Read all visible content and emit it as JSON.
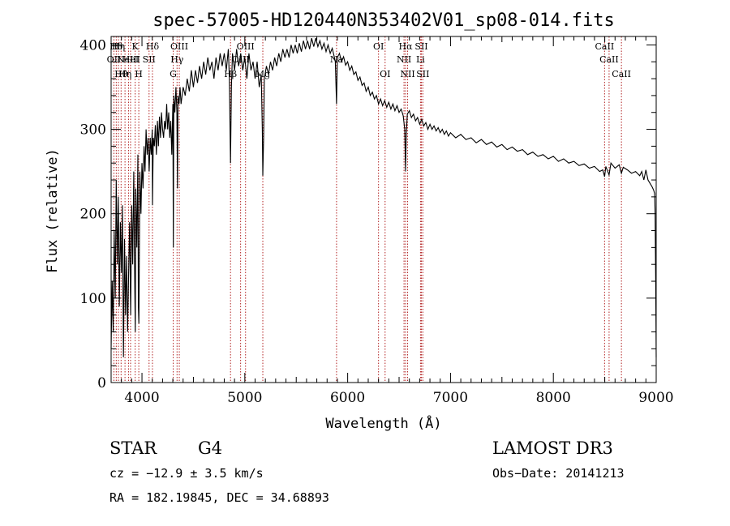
{
  "chart_data": {
    "type": "line",
    "title": "spec-57005-HD120440N353402V01_sp08-014.fits",
    "xlabel": "Wavelength (Å)",
    "ylabel": "Flux (relative)",
    "xlim": [
      3700,
      9000
    ],
    "ylim": [
      0,
      410
    ],
    "x_ticks": [
      {
        "value": 4000,
        "label": "4000"
      },
      {
        "value": 5000,
        "label": "5000"
      },
      {
        "value": 6000,
        "label": "6000"
      },
      {
        "value": 7000,
        "label": "7000"
      },
      {
        "value": 8000,
        "label": "8000"
      },
      {
        "value": 9000,
        "label": "9000"
      }
    ],
    "y_ticks": [
      {
        "value": 0,
        "label": "0"
      },
      {
        "value": 100,
        "label": "100"
      },
      {
        "value": 200,
        "label": "200"
      },
      {
        "value": 300,
        "label": "300"
      },
      {
        "value": 400,
        "label": "400"
      }
    ],
    "line_color": "#000000",
    "marker_color": "#b22222",
    "spectral_lines": [
      {
        "wavelength": 3727,
        "label": "OII",
        "tier": 2
      },
      {
        "wavelength": 3750,
        "label": "Hθ",
        "tier": 1
      },
      {
        "wavelength": 3771,
        "label": "Hη",
        "tier": 1
      },
      {
        "wavelength": 3797,
        "label": "Hθ",
        "tier": 3
      },
      {
        "wavelength": 3835,
        "label": "Hη",
        "tier": 3
      },
      {
        "wavelength": 3869,
        "label": "NeIII",
        "tier": 2
      },
      {
        "wavelength": 3889,
        "label": "HeI",
        "tier": 2
      },
      {
        "wavelength": 3934,
        "label": "K",
        "tier": 1
      },
      {
        "wavelength": 3969,
        "label": "H",
        "tier": 3
      },
      {
        "wavelength": 4069,
        "label": "SII",
        "tier": 2
      },
      {
        "wavelength": 4102,
        "label": "Hδ",
        "tier": 1
      },
      {
        "wavelength": 4304,
        "label": "G",
        "tier": 3
      },
      {
        "wavelength": 4341,
        "label": "Hγ",
        "tier": 2
      },
      {
        "wavelength": 4363,
        "label": "OIII",
        "tier": 1
      },
      {
        "wavelength": 4861,
        "label": "Hβ",
        "tier": 3
      },
      {
        "wavelength": 4959,
        "label": "OIII",
        "tier": 2
      },
      {
        "wavelength": 5007,
        "label": "OIII",
        "tier": 1
      },
      {
        "wavelength": 5175,
        "label": "Mg",
        "tier": 3
      },
      {
        "wavelength": 5892,
        "label": "Na",
        "tier": 2
      },
      {
        "wavelength": 6300,
        "label": "OI",
        "tier": 1
      },
      {
        "wavelength": 6364,
        "label": "OI",
        "tier": 3
      },
      {
        "wavelength": 6548,
        "label": "NII",
        "tier": 2
      },
      {
        "wavelength": 6563,
        "label": "Hα",
        "tier": 1
      },
      {
        "wavelength": 6583,
        "label": "NII",
        "tier": 3
      },
      {
        "wavelength": 6708,
        "label": "Li",
        "tier": 2
      },
      {
        "wavelength": 6717,
        "label": "SII",
        "tier": 1
      },
      {
        "wavelength": 6731,
        "label": "SII",
        "tier": 3
      },
      {
        "wavelength": 8498,
        "label": "CaII",
        "tier": 1
      },
      {
        "wavelength": 8542,
        "label": "CaII",
        "tier": 2
      },
      {
        "wavelength": 8662,
        "label": "CaII",
        "tier": 3
      }
    ],
    "spectrum": [
      [
        3700,
        40
      ],
      [
        3710,
        120
      ],
      [
        3720,
        60
      ],
      [
        3730,
        180
      ],
      [
        3740,
        100
      ],
      [
        3750,
        240
      ],
      [
        3760,
        140
      ],
      [
        3770,
        220
      ],
      [
        3780,
        90
      ],
      [
        3790,
        190
      ],
      [
        3800,
        130
      ],
      [
        3810,
        210
      ],
      [
        3820,
        30
      ],
      [
        3830,
        170
      ],
      [
        3840,
        80
      ],
      [
        3850,
        150
      ],
      [
        3860,
        60
      ],
      [
        3870,
        130
      ],
      [
        3880,
        190
      ],
      [
        3890,
        80
      ],
      [
        3900,
        210
      ],
      [
        3910,
        140
      ],
      [
        3920,
        250
      ],
      [
        3930,
        110
      ],
      [
        3935,
        60
      ],
      [
        3940,
        230
      ],
      [
        3950,
        160
      ],
      [
        3960,
        270
      ],
      [
        3965,
        90
      ],
      [
        3970,
        70
      ],
      [
        3980,
        250
      ],
      [
        3990,
        200
      ],
      [
        4000,
        260
      ],
      [
        4010,
        230
      ],
      [
        4020,
        280
      ],
      [
        4030,
        250
      ],
      [
        4040,
        300
      ],
      [
        4050,
        270
      ],
      [
        4060,
        290
      ],
      [
        4070,
        250
      ],
      [
        4080,
        290
      ],
      [
        4090,
        270
      ],
      [
        4100,
        300
      ],
      [
        4102,
        210
      ],
      [
        4110,
        290
      ],
      [
        4120,
        280
      ],
      [
        4130,
        305
      ],
      [
        4140,
        270
      ],
      [
        4150,
        310
      ],
      [
        4160,
        280
      ],
      [
        4170,
        315
      ],
      [
        4180,
        290
      ],
      [
        4190,
        320
      ],
      [
        4200,
        300
      ],
      [
        4210,
        290
      ],
      [
        4220,
        310
      ],
      [
        4230,
        300
      ],
      [
        4240,
        330
      ],
      [
        4250,
        300
      ],
      [
        4260,
        320
      ],
      [
        4270,
        290
      ],
      [
        4280,
        310
      ],
      [
        4290,
        270
      ],
      [
        4300,
        330
      ],
      [
        4305,
        160
      ],
      [
        4310,
        340
      ],
      [
        4320,
        320
      ],
      [
        4330,
        350
      ],
      [
        4340,
        320
      ],
      [
        4345,
        230
      ],
      [
        4350,
        340
      ],
      [
        4360,
        330
      ],
      [
        4370,
        350
      ],
      [
        4380,
        330
      ],
      [
        4390,
        340
      ],
      [
        4400,
        350
      ],
      [
        4420,
        340
      ],
      [
        4440,
        360
      ],
      [
        4460,
        345
      ],
      [
        4480,
        370
      ],
      [
        4500,
        350
      ],
      [
        4520,
        370
      ],
      [
        4540,
        355
      ],
      [
        4560,
        375
      ],
      [
        4580,
        360
      ],
      [
        4600,
        380
      ],
      [
        4620,
        365
      ],
      [
        4640,
        385
      ],
      [
        4660,
        370
      ],
      [
        4680,
        380
      ],
      [
        4700,
        360
      ],
      [
        4720,
        385
      ],
      [
        4740,
        370
      ],
      [
        4760,
        390
      ],
      [
        4780,
        375
      ],
      [
        4800,
        390
      ],
      [
        4820,
        370
      ],
      [
        4840,
        395
      ],
      [
        4850,
        360
      ],
      [
        4861,
        260
      ],
      [
        4870,
        350
      ],
      [
        4880,
        390
      ],
      [
        4900,
        370
      ],
      [
        4920,
        395
      ],
      [
        4940,
        375
      ],
      [
        4960,
        390
      ],
      [
        4980,
        370
      ],
      [
        5000,
        385
      ],
      [
        5020,
        360
      ],
      [
        5040,
        390
      ],
      [
        5060,
        370
      ],
      [
        5080,
        380
      ],
      [
        5100,
        360
      ],
      [
        5120,
        380
      ],
      [
        5140,
        350
      ],
      [
        5160,
        365
      ],
      [
        5170,
        300
      ],
      [
        5175,
        245
      ],
      [
        5183,
        290
      ],
      [
        5190,
        360
      ],
      [
        5210,
        375
      ],
      [
        5230,
        365
      ],
      [
        5250,
        380
      ],
      [
        5270,
        370
      ],
      [
        5290,
        385
      ],
      [
        5310,
        375
      ],
      [
        5330,
        390
      ],
      [
        5350,
        380
      ],
      [
        5370,
        395
      ],
      [
        5390,
        385
      ],
      [
        5410,
        395
      ],
      [
        5430,
        385
      ],
      [
        5450,
        400
      ],
      [
        5470,
        390
      ],
      [
        5490,
        400
      ],
      [
        5510,
        390
      ],
      [
        5530,
        402
      ],
      [
        5550,
        392
      ],
      [
        5570,
        405
      ],
      [
        5590,
        395
      ],
      [
        5610,
        405
      ],
      [
        5630,
        395
      ],
      [
        5650,
        408
      ],
      [
        5670,
        398
      ],
      [
        5690,
        408
      ],
      [
        5710,
        398
      ],
      [
        5730,
        405
      ],
      [
        5750,
        395
      ],
      [
        5770,
        402
      ],
      [
        5790,
        392
      ],
      [
        5810,
        400
      ],
      [
        5830,
        390
      ],
      [
        5850,
        396
      ],
      [
        5870,
        386
      ],
      [
        5880,
        380
      ],
      [
        5892,
        330
      ],
      [
        5900,
        385
      ],
      [
        5920,
        390
      ],
      [
        5940,
        380
      ],
      [
        5960,
        386
      ],
      [
        5980,
        376
      ],
      [
        6000,
        380
      ],
      [
        6020,
        370
      ],
      [
        6040,
        375
      ],
      [
        6060,
        365
      ],
      [
        6080,
        368
      ],
      [
        6100,
        358
      ],
      [
        6120,
        362
      ],
      [
        6140,
        352
      ],
      [
        6160,
        355
      ],
      [
        6180,
        345
      ],
      [
        6200,
        350
      ],
      [
        6220,
        340
      ],
      [
        6240,
        344
      ],
      [
        6260,
        336
      ],
      [
        6280,
        340
      ],
      [
        6300,
        330
      ],
      [
        6320,
        336
      ],
      [
        6340,
        328
      ],
      [
        6360,
        334
      ],
      [
        6380,
        326
      ],
      [
        6400,
        332
      ],
      [
        6420,
        324
      ],
      [
        6440,
        330
      ],
      [
        6460,
        322
      ],
      [
        6480,
        328
      ],
      [
        6500,
        320
      ],
      [
        6520,
        324
      ],
      [
        6540,
        316
      ],
      [
        6555,
        300
      ],
      [
        6563,
        250
      ],
      [
        6570,
        295
      ],
      [
        6580,
        318
      ],
      [
        6600,
        322
      ],
      [
        6620,
        314
      ],
      [
        6640,
        318
      ],
      [
        6660,
        310
      ],
      [
        6680,
        314
      ],
      [
        6700,
        306
      ],
      [
        6720,
        312
      ],
      [
        6740,
        304
      ],
      [
        6760,
        308
      ],
      [
        6780,
        300
      ],
      [
        6800,
        306
      ],
      [
        6820,
        300
      ],
      [
        6840,
        304
      ],
      [
        6860,
        298
      ],
      [
        6880,
        302
      ],
      [
        6900,
        296
      ],
      [
        6920,
        300
      ],
      [
        6940,
        294
      ],
      [
        6960,
        298
      ],
      [
        6980,
        292
      ],
      [
        7000,
        296
      ],
      [
        7050,
        290
      ],
      [
        7100,
        294
      ],
      [
        7150,
        288
      ],
      [
        7200,
        290
      ],
      [
        7250,
        284
      ],
      [
        7300,
        288
      ],
      [
        7350,
        282
      ],
      [
        7400,
        285
      ],
      [
        7450,
        279
      ],
      [
        7500,
        282
      ],
      [
        7550,
        276
      ],
      [
        7600,
        279
      ],
      [
        7650,
        274
      ],
      [
        7700,
        276
      ],
      [
        7750,
        270
      ],
      [
        7800,
        273
      ],
      [
        7850,
        268
      ],
      [
        7900,
        270
      ],
      [
        7950,
        265
      ],
      [
        8000,
        268
      ],
      [
        8050,
        262
      ],
      [
        8100,
        265
      ],
      [
        8150,
        260
      ],
      [
        8200,
        262
      ],
      [
        8250,
        257
      ],
      [
        8300,
        259
      ],
      [
        8350,
        254
      ],
      [
        8400,
        256
      ],
      [
        8450,
        250
      ],
      [
        8480,
        252
      ],
      [
        8498,
        244
      ],
      [
        8510,
        256
      ],
      [
        8542,
        246
      ],
      [
        8560,
        260
      ],
      [
        8600,
        254
      ],
      [
        8640,
        258
      ],
      [
        8662,
        248
      ],
      [
        8680,
        255
      ],
      [
        8720,
        252
      ],
      [
        8760,
        248
      ],
      [
        8800,
        250
      ],
      [
        8840,
        245
      ],
      [
        8860,
        250
      ],
      [
        8880,
        240
      ],
      [
        8900,
        252
      ],
      [
        8920,
        240
      ],
      [
        8940,
        236
      ],
      [
        8960,
        232
      ],
      [
        8975,
        228
      ],
      [
        8985,
        224
      ],
      [
        8990,
        200
      ],
      [
        8995,
        120
      ],
      [
        9000,
        30
      ]
    ]
  },
  "info": {
    "object_class": "STAR",
    "subclass": "G4",
    "survey": "LAMOST DR3",
    "redshift": "cz = −12.9 ± 3.5 km/s",
    "obs_date": "Obs−Date: 20141213",
    "coords": "RA = 182.19845, DEC =  34.68893"
  }
}
